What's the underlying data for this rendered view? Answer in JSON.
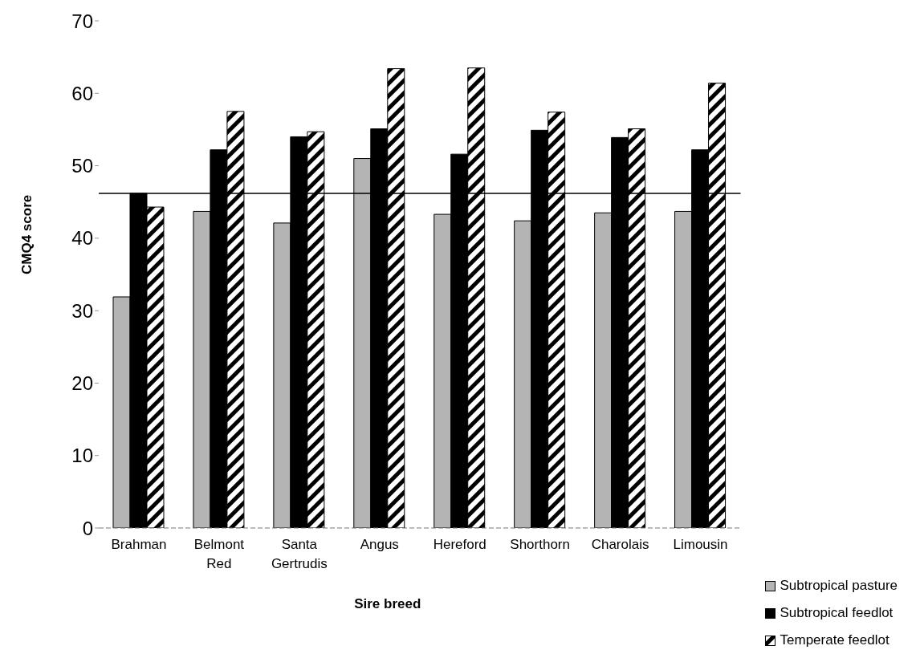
{
  "chart_data": {
    "type": "bar",
    "xlabel": "Sire breed",
    "ylabel": "CMQ4 score",
    "categories": [
      "Brahman",
      "Belmont Red",
      "Santa Gertrudis",
      "Angus",
      "Hereford",
      "Shorthorn",
      "Charolais",
      "Limousin"
    ],
    "series": [
      {
        "name": "Subtropical pasture",
        "color": "#b4b4b4",
        "values": [
          31.9,
          43.7,
          42.1,
          51.0,
          43.3,
          42.4,
          43.5,
          43.7
        ]
      },
      {
        "name": "Subtropical feedlot",
        "color": "#000000",
        "values": [
          46.2,
          52.2,
          54.0,
          55.1,
          51.6,
          54.9,
          53.9,
          52.2
        ]
      },
      {
        "name": "Temperate feedlot",
        "color": "#000000",
        "values": [
          44.3,
          57.5,
          54.7,
          63.4,
          63.5,
          57.4,
          55.1,
          61.4
        ]
      }
    ],
    "ylim": [
      0,
      70
    ],
    "yticks": [
      0,
      10,
      20,
      30,
      40,
      50,
      60,
      70
    ],
    "grid": false,
    "legend": "bottom right",
    "ref_lines": [
      {
        "axis": "y",
        "value": 46.2,
        "color": "#000000"
      }
    ]
  }
}
